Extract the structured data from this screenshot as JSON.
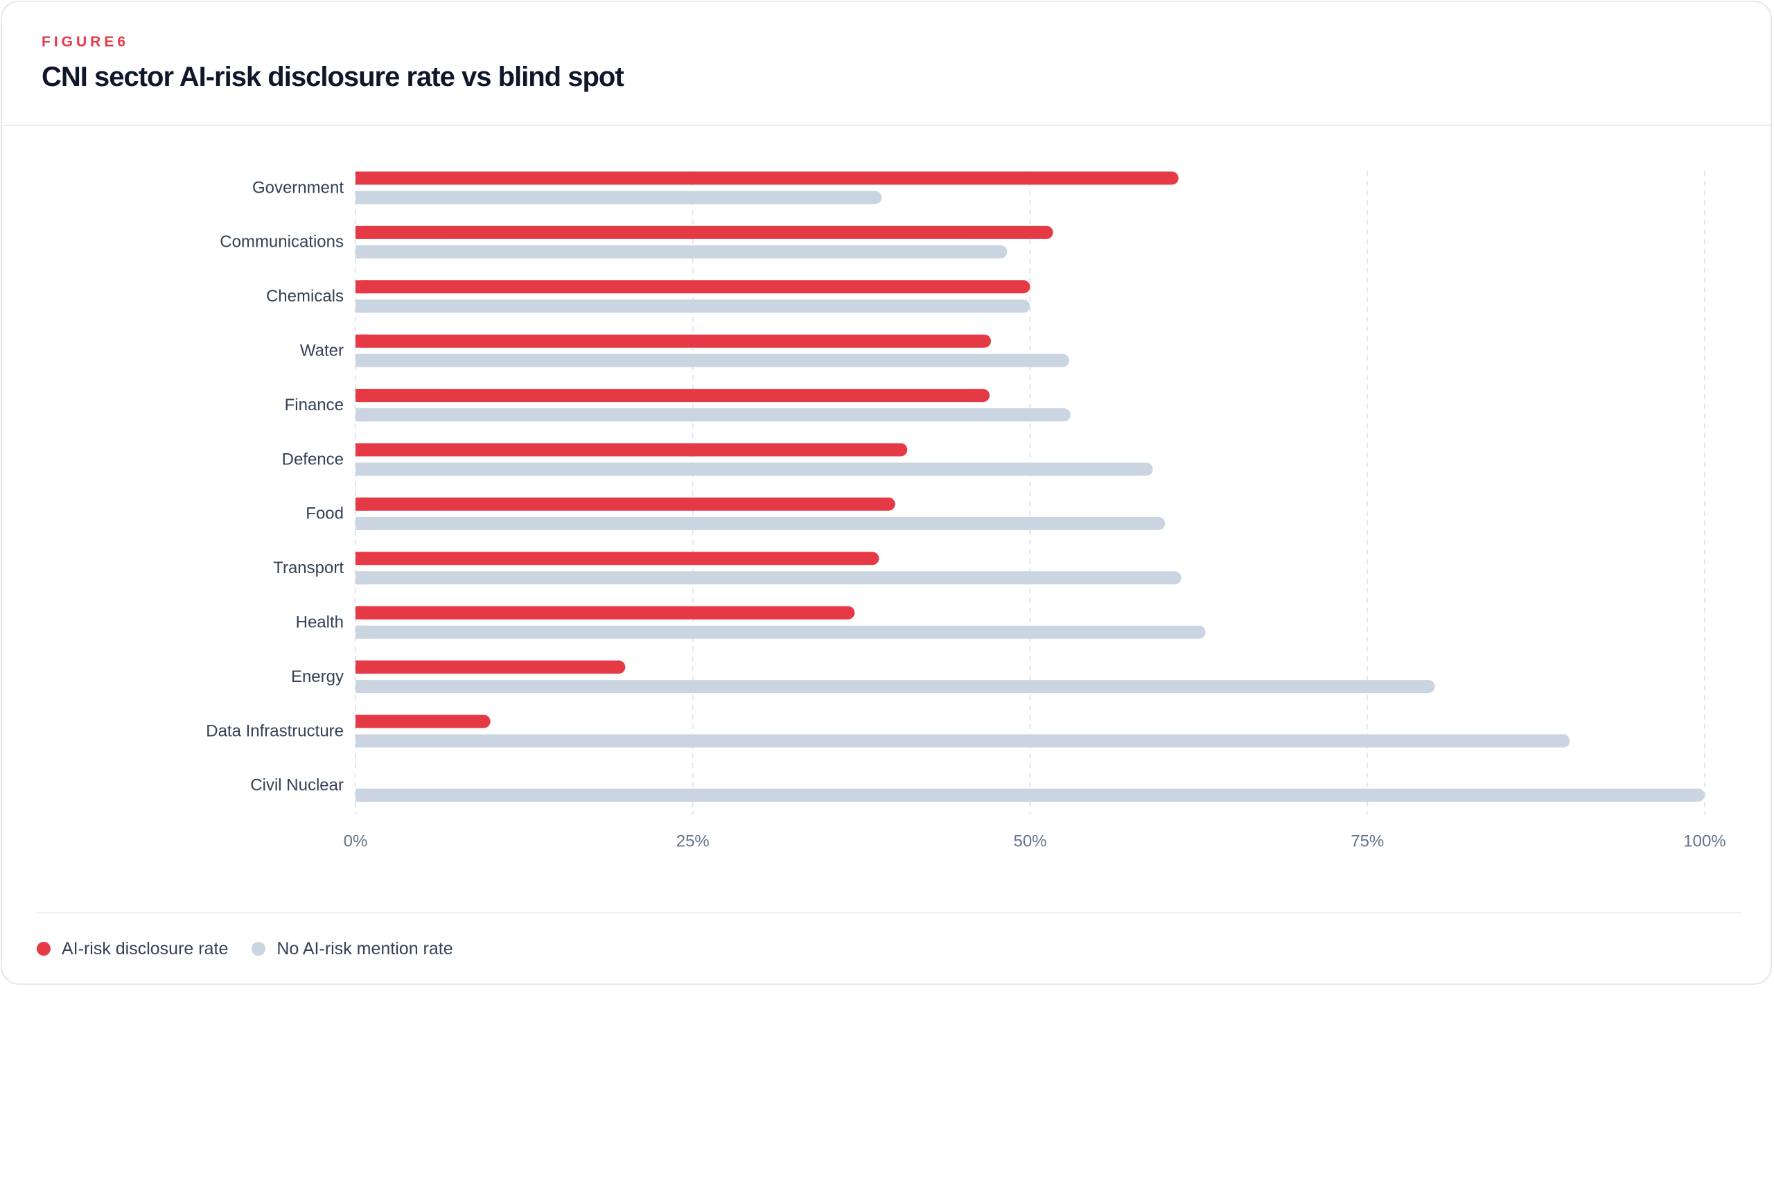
{
  "figure": {
    "eyebrow": "FIGURE6",
    "title": "CNI sector AI-risk disclosure rate vs blind spot"
  },
  "colors": {
    "disclosure": "#e63946",
    "no_mention": "#cbd5e1",
    "grid": "#e2e5ea",
    "label": "#334155",
    "tick": "#64748b"
  },
  "legend": {
    "items": [
      {
        "label": "AI-risk disclosure rate",
        "color": "#e63946"
      },
      {
        "label": "No AI-risk mention rate",
        "color": "#cbd5e1"
      }
    ]
  },
  "chart_data": {
    "type": "bar",
    "orientation": "horizontal",
    "title": "CNI sector AI-risk disclosure rate vs blind spot",
    "categories": [
      "Government",
      "Communications",
      "Chemicals",
      "Water",
      "Finance",
      "Defence",
      "Food",
      "Transport",
      "Health",
      "Energy",
      "Data Infrastructure",
      "Civil Nuclear"
    ],
    "series": [
      {
        "name": "AI-risk disclosure rate",
        "values": [
          61,
          51.7,
          50,
          47.1,
          47,
          40.9,
          40,
          38.8,
          37,
          20,
          10,
          0
        ]
      },
      {
        "name": "No AI-risk mention rate",
        "values": [
          39,
          48.3,
          50,
          52.9,
          53,
          59.1,
          60,
          61.2,
          63,
          80,
          90,
          100
        ]
      }
    ],
    "xlim": [
      0,
      100
    ],
    "x_ticks": [
      "0%",
      "25%",
      "50%",
      "75%",
      "100%"
    ],
    "grid": true,
    "legend_position": "bottom-left"
  }
}
